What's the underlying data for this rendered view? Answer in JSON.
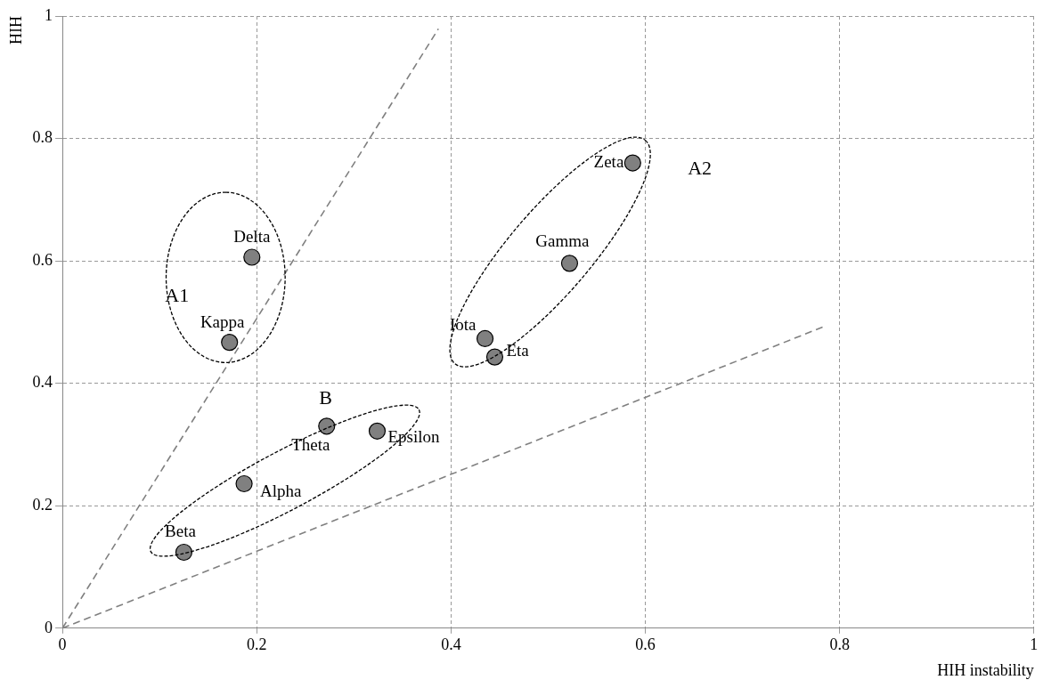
{
  "chart_data": {
    "type": "scatter",
    "xlabel": "HIH instability",
    "ylabel": "HIH",
    "xlim": [
      0,
      1
    ],
    "ylim": [
      0,
      1
    ],
    "xticks": [
      0,
      0.2,
      0.4,
      0.6,
      0.8,
      1
    ],
    "yticks": [
      0,
      0.2,
      0.4,
      0.6,
      0.8,
      1
    ],
    "grid": true,
    "legend": false,
    "marker": "circle",
    "series": [
      {
        "type": "scatter",
        "color": "#808080",
        "x": [
          0.195,
          0.172,
          0.587,
          0.522,
          0.435,
          0.445,
          0.272,
          0.324,
          0.187,
          0.125
        ],
        "values": [
          0.606,
          0.467,
          0.76,
          0.596,
          0.473,
          0.443,
          0.33,
          0.322,
          0.236,
          0.124
        ],
        "value_labels": [
          "Delta",
          "Kappa",
          "Zeta",
          "Gamma",
          "Iota",
          "Eta",
          "Theta",
          "Epsilon",
          "Alpha",
          "Beta"
        ]
      },
      {
        "type": "line",
        "color": "#808080",
        "line_style": "dashed",
        "marker": "none",
        "x": [
          0,
          0.387
        ],
        "values": [
          0,
          0.979
        ]
      },
      {
        "type": "line",
        "color": "#808080",
        "line_style": "dashed",
        "marker": "none",
        "x": [
          0,
          0.786
        ],
        "values": [
          0,
          0.494
        ]
      }
    ],
    "annotations": [
      "A1",
      "A2",
      "B"
    ]
  }
}
